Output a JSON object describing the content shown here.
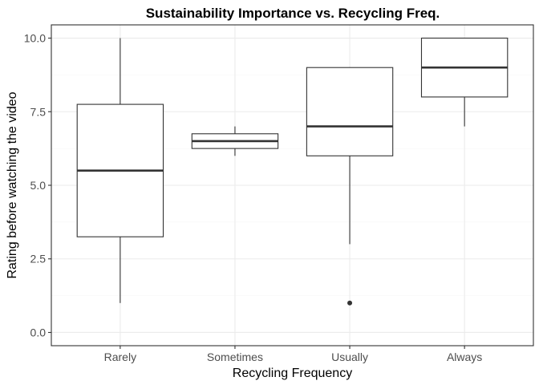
{
  "chart_data": {
    "type": "box",
    "title": "Sustainability Importance vs. Recycling Freq.",
    "xlabel": "Recycling Frequency",
    "ylabel": "Rating before watching the video",
    "ylim": [
      -0.45,
      10.45
    ],
    "yticks": [
      0.0,
      2.5,
      5.0,
      7.5,
      10.0
    ],
    "ytick_labels": [
      "0.0",
      "2.5",
      "5.0",
      "7.5",
      "10.0"
    ],
    "yminor_ticks": [
      1.25,
      3.75,
      6.25,
      8.75
    ],
    "grid": true,
    "categories": [
      "Rarely",
      "Sometimes",
      "Usually",
      "Always"
    ],
    "boxes": [
      {
        "category": "Rarely",
        "lower_whisker": 1.0,
        "q1": 3.25,
        "median": 5.5,
        "q3": 7.75,
        "upper_whisker": 10.0,
        "outliers": []
      },
      {
        "category": "Sometimes",
        "lower_whisker": 6.0,
        "q1": 6.25,
        "median": 6.5,
        "q3": 6.75,
        "upper_whisker": 7.0,
        "outliers": []
      },
      {
        "category": "Usually",
        "lower_whisker": 3.0,
        "q1": 6.0,
        "median": 7.0,
        "q3": 9.0,
        "upper_whisker": 9.0,
        "outliers": [
          1.0
        ]
      },
      {
        "category": "Always",
        "lower_whisker": 7.0,
        "q1": 8.0,
        "median": 9.0,
        "q3": 10.0,
        "upper_whisker": 10.0,
        "outliers": []
      }
    ],
    "colors": {
      "panel_background": "#ffffff",
      "panel_border": "#333333",
      "grid_major": "#ebebeb",
      "grid_minor": "#f5f5f5",
      "box_stroke": "#333333",
      "box_fill": "#ffffff"
    }
  }
}
